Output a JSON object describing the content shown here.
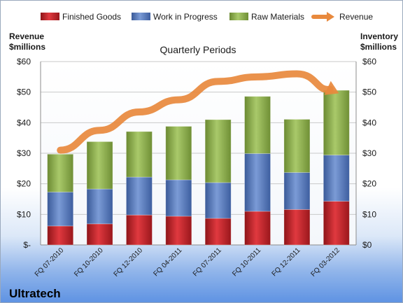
{
  "chart_data": {
    "type": "bar",
    "subtitle": "Quarterly Periods",
    "company": "Ultratech",
    "left_axis_title": [
      "Revenue",
      "$millions"
    ],
    "right_axis_title": [
      "Inventory",
      "$millions"
    ],
    "categories": [
      "FQ 07-2010",
      "FQ 10-2010",
      "FQ 12-2010",
      "FQ 04-2011",
      "FQ 07-2011",
      "FQ 10-2011",
      "FQ 12-2011",
      "FQ 03-2012"
    ],
    "left_ticks": [
      "$-",
      "$10",
      "$20",
      "$30",
      "$40",
      "$50",
      "$60"
    ],
    "right_ticks": [
      "$0",
      "$10",
      "$20",
      "$30",
      "$40",
      "$50",
      "$60"
    ],
    "ylim": [
      0,
      60
    ],
    "grid": true,
    "legend_position": "top",
    "series": [
      {
        "name": "Finished Goods",
        "kind": "stacked-bar",
        "color": "#c0272d",
        "values": [
          6.2,
          6.9,
          9.8,
          9.4,
          8.7,
          11.0,
          11.6,
          14.3
        ]
      },
      {
        "name": "Work in Progress",
        "kind": "stacked-bar",
        "color": "#4f73b6",
        "values": [
          11.1,
          11.4,
          12.4,
          11.9,
          11.7,
          18.9,
          12.1,
          15.1
        ]
      },
      {
        "name": "Raw Materials",
        "kind": "stacked-bar",
        "color": "#8cb04a",
        "values": [
          12.4,
          15.5,
          14.9,
          17.5,
          20.6,
          18.7,
          17.4,
          21.2
        ]
      },
      {
        "name": "Revenue",
        "kind": "line",
        "color": "#e8893d",
        "values": [
          31,
          37.5,
          43.5,
          47.5,
          53.5,
          55,
          56,
          50
        ]
      }
    ]
  }
}
